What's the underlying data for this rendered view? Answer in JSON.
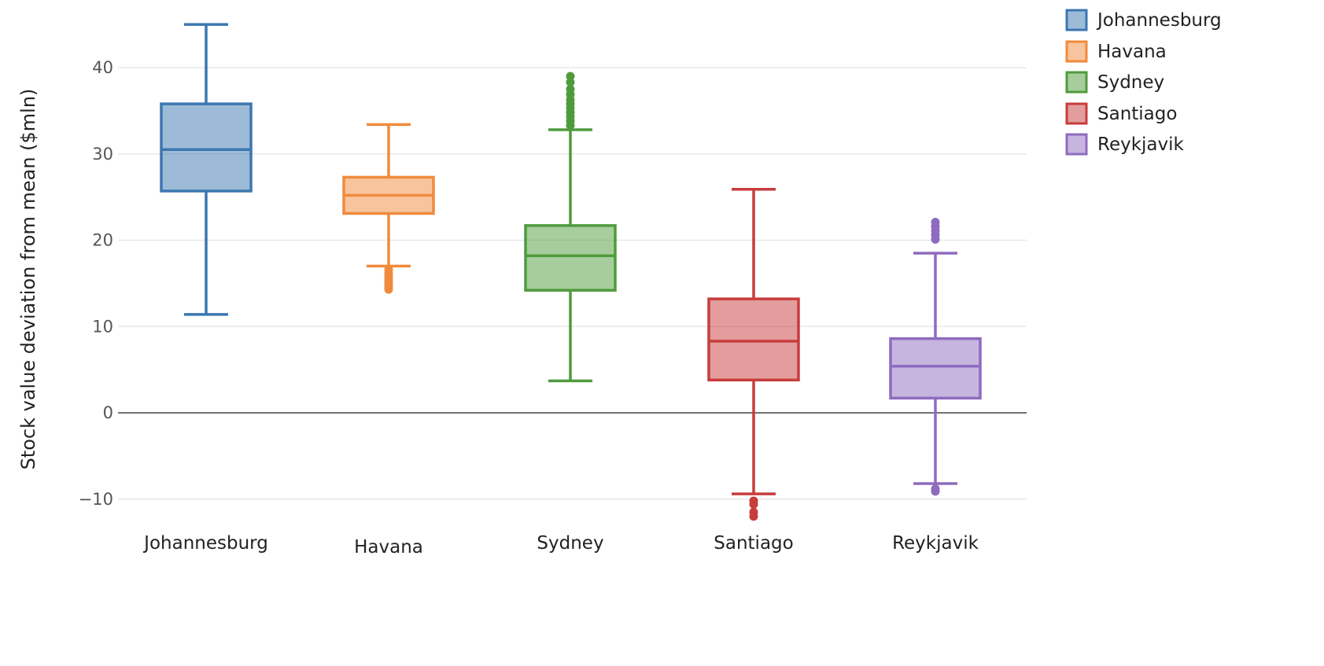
{
  "chart_data": {
    "type": "box",
    "ylabel": "Stock value deviation from mean ($mln)",
    "xlabel": "",
    "ylim": [
      -12.5,
      45.5
    ],
    "yticks": [
      -10,
      0,
      10,
      20,
      30,
      40
    ],
    "ytick_labels": [
      "−10",
      "0",
      "10",
      "20",
      "30",
      "40"
    ],
    "grid": true,
    "zero_line": true,
    "legend_position": "top-right",
    "categories": [
      "Johannesburg",
      "Havana",
      "Sydney",
      "Santiago",
      "Reykjavik"
    ],
    "series": [
      {
        "name": "Johannesburg",
        "color": "#3c77b0",
        "whisker_low": 11.4,
        "q1": 25.7,
        "median": 30.5,
        "q3": 35.8,
        "whisker_high": 45.0,
        "outliers": []
      },
      {
        "name": "Havana",
        "color": "#f08a3c",
        "whisker_low": 17.0,
        "q1": 23.1,
        "median": 25.2,
        "q3": 27.3,
        "whisker_high": 33.4,
        "outliers": [
          16.6,
          16.2,
          15.8,
          15.5,
          15.2,
          14.9,
          14.6,
          14.3
        ]
      },
      {
        "name": "Sydney",
        "color": "#4f9b3c",
        "whisker_low": 3.7,
        "q1": 14.2,
        "median": 18.2,
        "q3": 21.7,
        "whisker_high": 32.8,
        "outliers": [
          33.3,
          33.8,
          34.3,
          34.8,
          35.3,
          35.8,
          36.3,
          36.9,
          37.5,
          38.3,
          39.0
        ]
      },
      {
        "name": "Santiago",
        "color": "#c83c3c",
        "whisker_low": -9.4,
        "q1": 3.8,
        "median": 8.3,
        "q3": 13.2,
        "whisker_high": 25.9,
        "outliers": [
          -10.2,
          -10.6,
          -11.5,
          -12.0
        ]
      },
      {
        "name": "Reykjavik",
        "color": "#8e6bbf",
        "whisker_low": -8.2,
        "q1": 1.7,
        "median": 5.4,
        "q3": 8.6,
        "whisker_high": 18.5,
        "outliers": [
          20.1,
          20.6,
          21.1,
          21.6,
          22.1,
          -8.8,
          -9.1
        ]
      }
    ]
  }
}
